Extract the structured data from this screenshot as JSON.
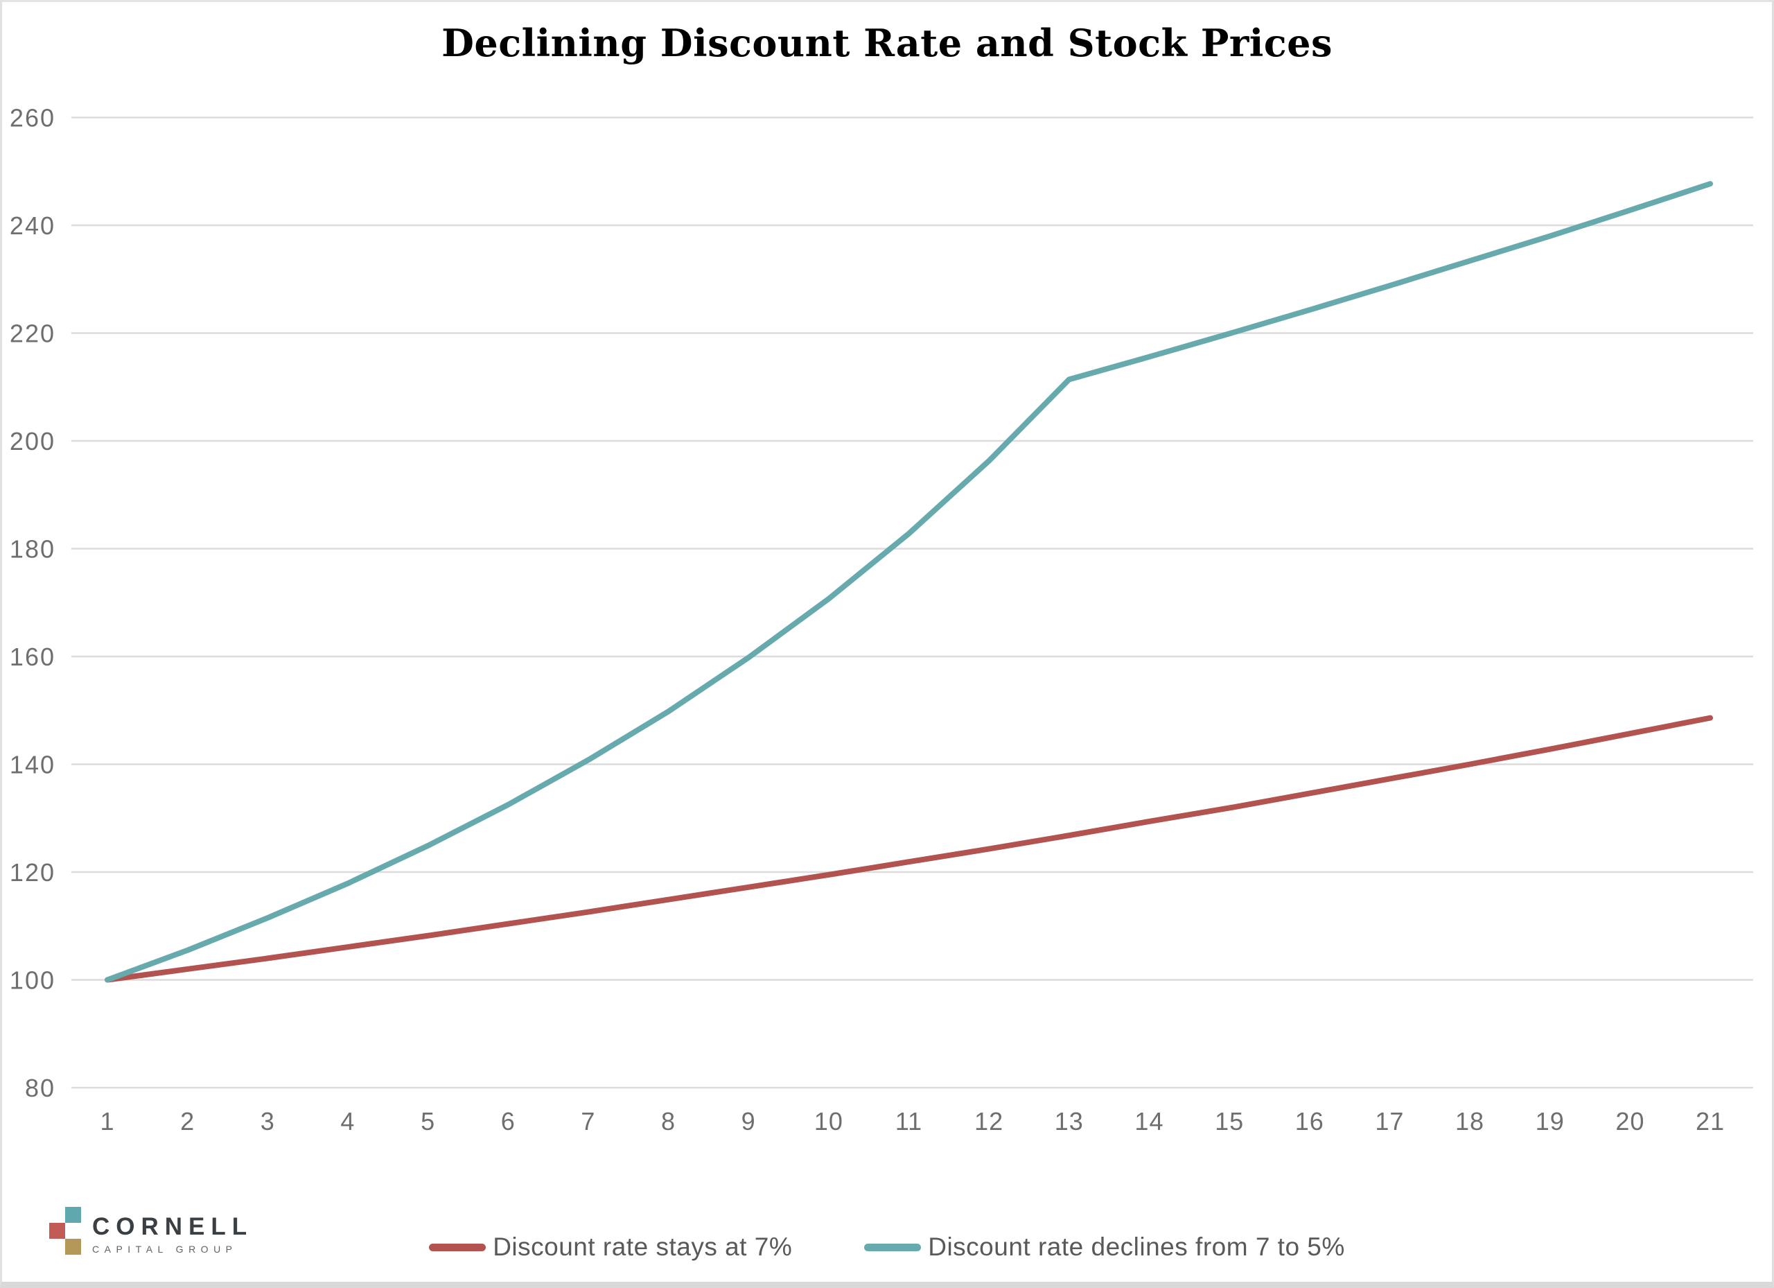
{
  "page": {
    "title": "Declining Discount Rate and Stock Prices"
  },
  "chart_data": {
    "type": "line",
    "title": "Declining Discount Rate and Stock Prices",
    "x": [
      1,
      2,
      3,
      4,
      5,
      6,
      7,
      8,
      9,
      10,
      11,
      12,
      13,
      14,
      15,
      16,
      17,
      18,
      19,
      20,
      21
    ],
    "series": [
      {
        "name": "Discount rate stays at 7%",
        "color": "#B2534F",
        "values": [
          100,
          102.0,
          104.0,
          106.1,
          108.2,
          110.4,
          112.6,
          114.9,
          117.2,
          119.5,
          121.9,
          124.3,
          126.8,
          129.4,
          131.9,
          134.6,
          137.3,
          140.0,
          142.8,
          145.7,
          148.6
        ]
      },
      {
        "name": "Discount rate declines from 7 to 5%",
        "color": "#67AAAE",
        "values": [
          100,
          105.5,
          111.5,
          117.9,
          124.9,
          132.5,
          140.8,
          149.8,
          159.8,
          170.7,
          182.8,
          196.3,
          211.4,
          215.6,
          219.9,
          224.3,
          228.8,
          233.4,
          238.0,
          242.8,
          247.7
        ]
      }
    ],
    "ylim": [
      80,
      260
    ],
    "yticks": [
      80,
      100,
      120,
      140,
      160,
      180,
      200,
      220,
      240,
      260
    ],
    "xticks": [
      1,
      2,
      3,
      4,
      5,
      6,
      7,
      8,
      9,
      10,
      11,
      12,
      13,
      14,
      15,
      16,
      17,
      18,
      19,
      20,
      21
    ],
    "grid": "horizontal",
    "gridline_color": "#dcdcdc",
    "axis_text_color": "#6e6e6e",
    "legend_position": "bottom"
  },
  "logo": {
    "company": "CORNELL",
    "tagline": "CAPITAL GROUP",
    "square_colors": {
      "teal": "#5FA8AD",
      "red": "#C05B55",
      "gold": "#B3985A"
    }
  }
}
